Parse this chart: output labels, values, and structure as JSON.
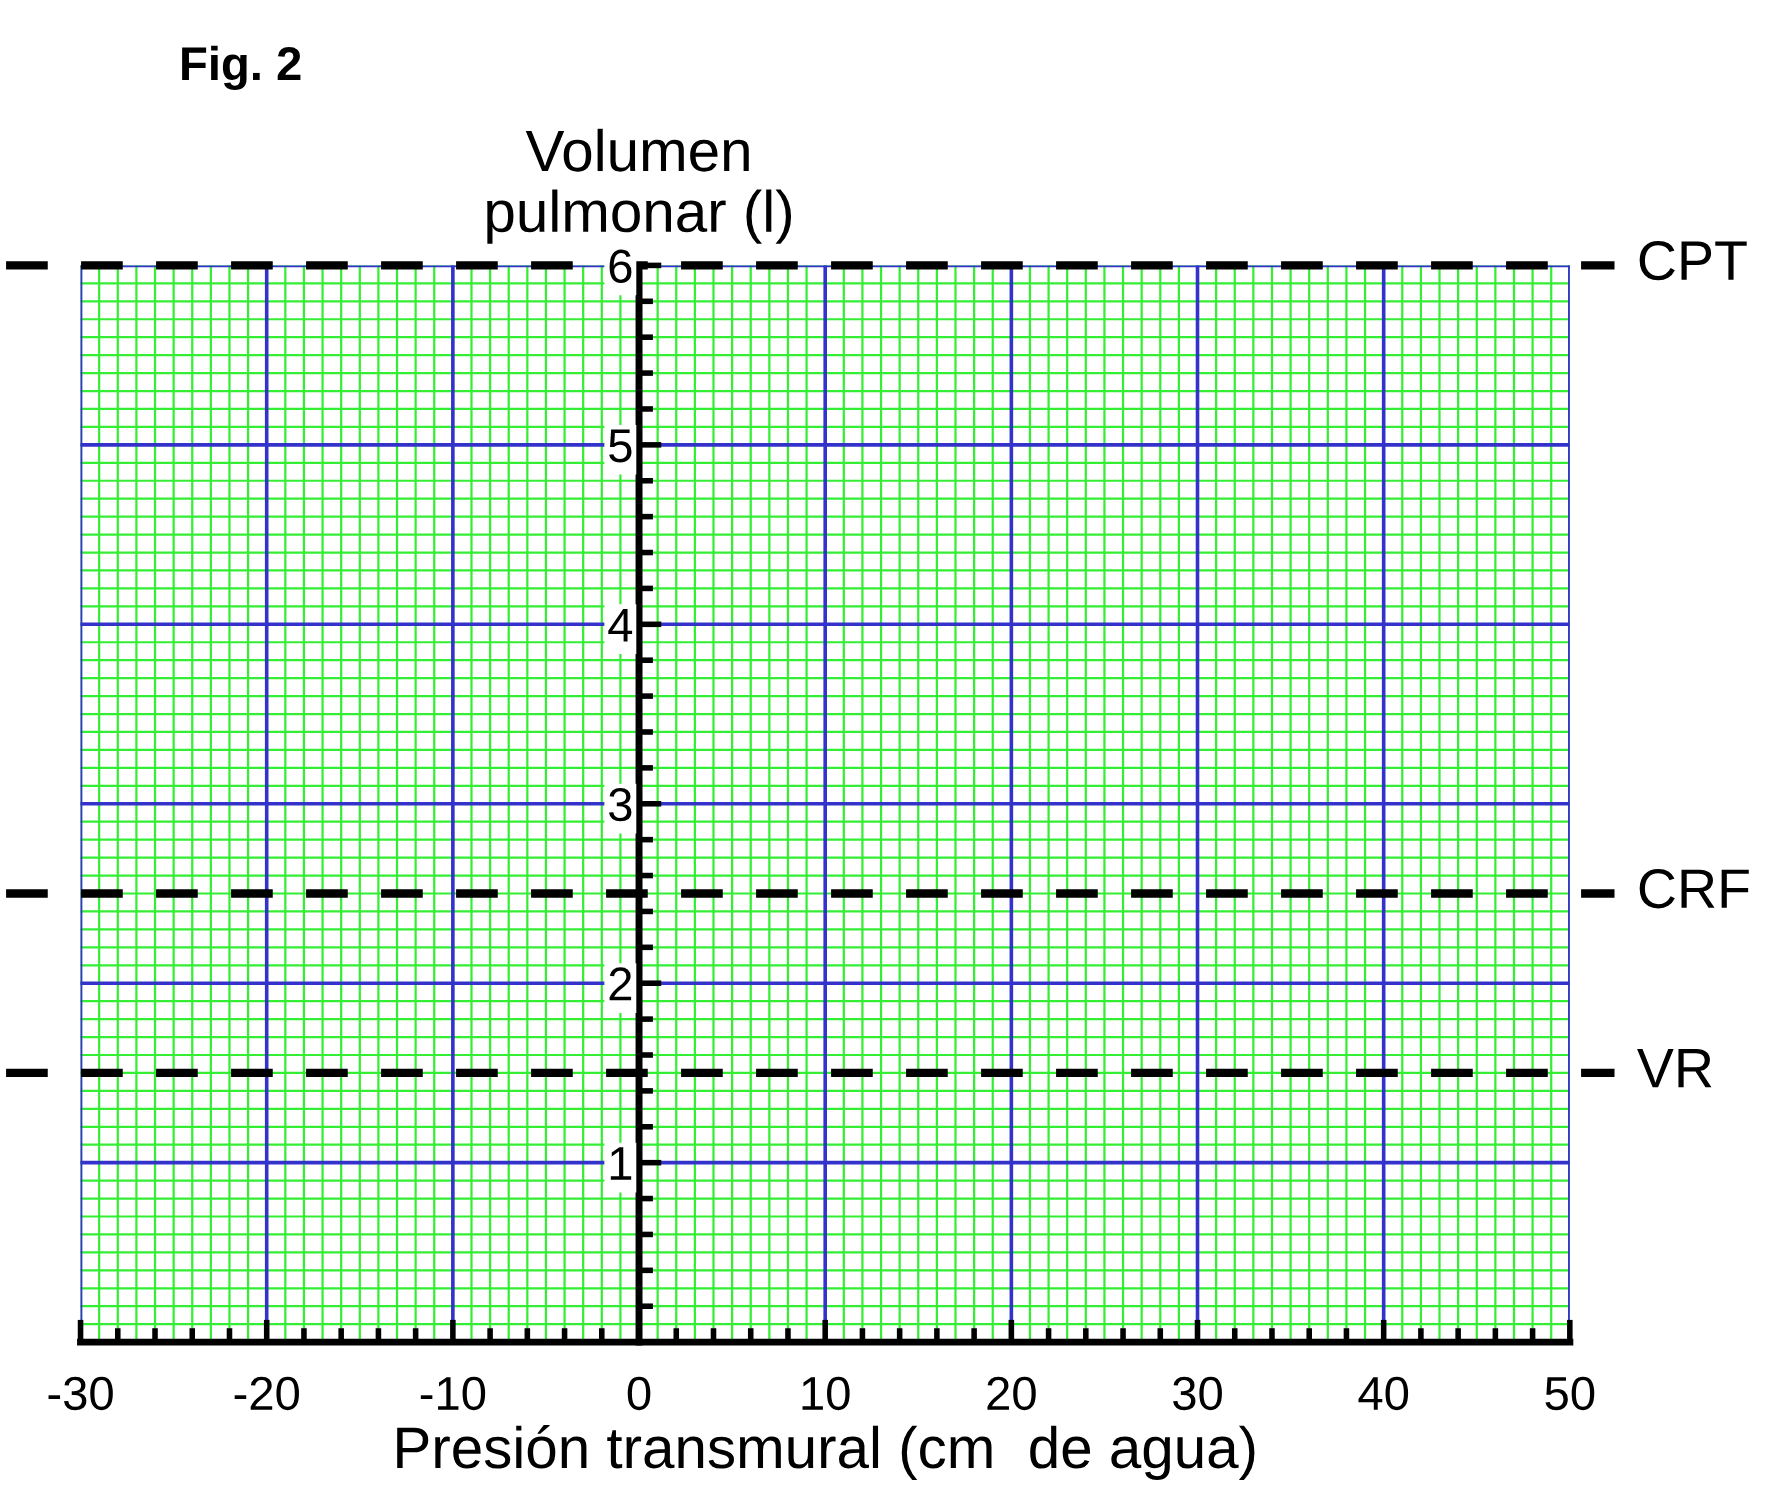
{
  "chart_data": {
    "type": "line",
    "title": "Fig. 2",
    "xlabel": "Presión transmural (cm  de agua)",
    "ylabel": "Volumen\npulmonar (l)",
    "xlim": [
      -30,
      50
    ],
    "ylim": [
      0,
      6
    ],
    "xticks": [
      -30,
      -20,
      -10,
      0,
      10,
      20,
      30,
      40,
      50
    ],
    "yticks": [
      {
        "value": 0,
        "label": null
      },
      1,
      2,
      3,
      4,
      5,
      6
    ],
    "grid": true,
    "ref_lines": [
      {
        "axis": "y",
        "value": 6,
        "label": "CPT",
        "color": "#000000",
        "line_style": "dashed"
      },
      {
        "axis": "y",
        "value": 2.5,
        "label": "CRF",
        "color": "#000000",
        "line_style": "dashed"
      },
      {
        "axis": "y",
        "value": 1.5,
        "label": "VR",
        "color": "#000000",
        "line_style": "dashed"
      }
    ]
  }
}
